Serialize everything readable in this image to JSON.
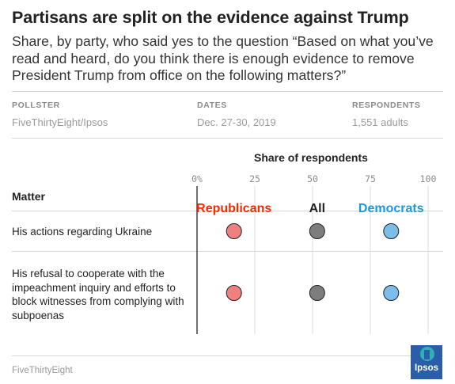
{
  "header": {
    "title": "Partisans are split on the evidence against Trump",
    "subtitle": "Share, by party, who said yes to the question “Based on what you’ve read and heard, do you think there is enough evidence to remove President Trump from office on the following matters?”"
  },
  "meta": {
    "pollster_label": "POLLSTER",
    "pollster_value": "FiveThirtyEight/Ipsos",
    "dates_label": "DATES",
    "dates_value": "Dec. 27-30, 2019",
    "respondents_label": "RESPONDENTS",
    "respondents_value": "1,551 adults"
  },
  "table": {
    "matter_header": "Matter"
  },
  "chart_data": {
    "type": "scatter",
    "title": "Share of respondents",
    "xlim": [
      0,
      100
    ],
    "ticks": [
      "0%",
      "25",
      "50",
      "75",
      "100"
    ],
    "tick_values": [
      0,
      25,
      50,
      75,
      100
    ],
    "categories": [
      "His actions regarding Ukraine",
      "His refusal to cooperate with the impeachment inquiry and efforts to block witnesses from complying with subpoenas"
    ],
    "series": [
      {
        "name": "Republicans",
        "color": "#ff2700",
        "fill": "#f08080",
        "values": [
          16,
          16
        ]
      },
      {
        "name": "All",
        "color": "#222222",
        "fill": "#7d7d7d",
        "values": [
          52,
          52
        ]
      },
      {
        "name": "Democrats",
        "color": "#1b9ad6",
        "fill": "#7dbde9",
        "values": [
          84,
          84
        ]
      }
    ]
  },
  "footer": {
    "source": "FiveThirtyEight",
    "logo_text": "Ipsos"
  }
}
